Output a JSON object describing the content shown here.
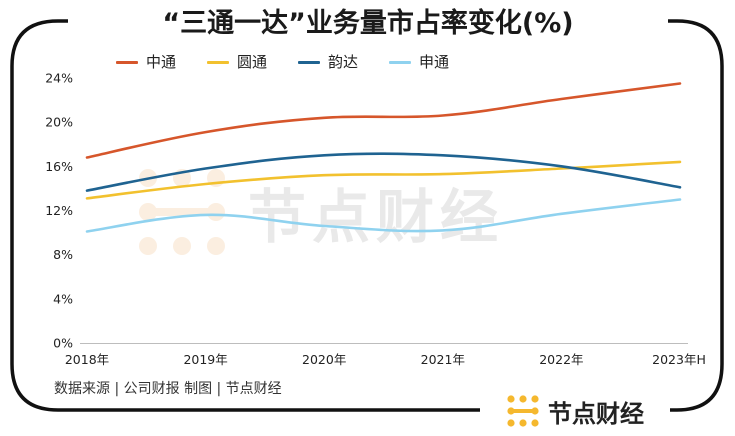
{
  "brand": {
    "name": "节点财经",
    "accent_color": "#f5b82e",
    "icon": "logo-dots-icon"
  },
  "source_note": "数据来源 | 公司财报  制图 | 节点财经",
  "chart_data": {
    "type": "line",
    "title": "“三通一达”业务量市占率变化(%)",
    "categories": [
      "2018年",
      "2019年",
      "2020年",
      "2021年",
      "2022年",
      "2023年H"
    ],
    "y_ticks": [
      "0%",
      "4%",
      "8%",
      "12%",
      "16%",
      "20%",
      "24%"
    ],
    "ylim": [
      0,
      24
    ],
    "xlabel": "",
    "ylabel": "",
    "grid": false,
    "legend_position": "top",
    "series": [
      {
        "name": "中通",
        "color": "#d6562b",
        "values": [
          16.8,
          19.1,
          20.4,
          20.6,
          22.1,
          23.5
        ]
      },
      {
        "name": "圆通",
        "color": "#f2c12e",
        "values": [
          13.1,
          14.4,
          15.2,
          15.3,
          15.8,
          16.4
        ]
      },
      {
        "name": "韵达",
        "color": "#1f6391",
        "values": [
          13.8,
          15.8,
          17.0,
          17.0,
          16.0,
          14.1
        ]
      },
      {
        "name": "申通",
        "color": "#8fd2ef",
        "values": [
          10.1,
          11.6,
          10.6,
          10.2,
          11.7,
          13.0
        ]
      }
    ]
  }
}
